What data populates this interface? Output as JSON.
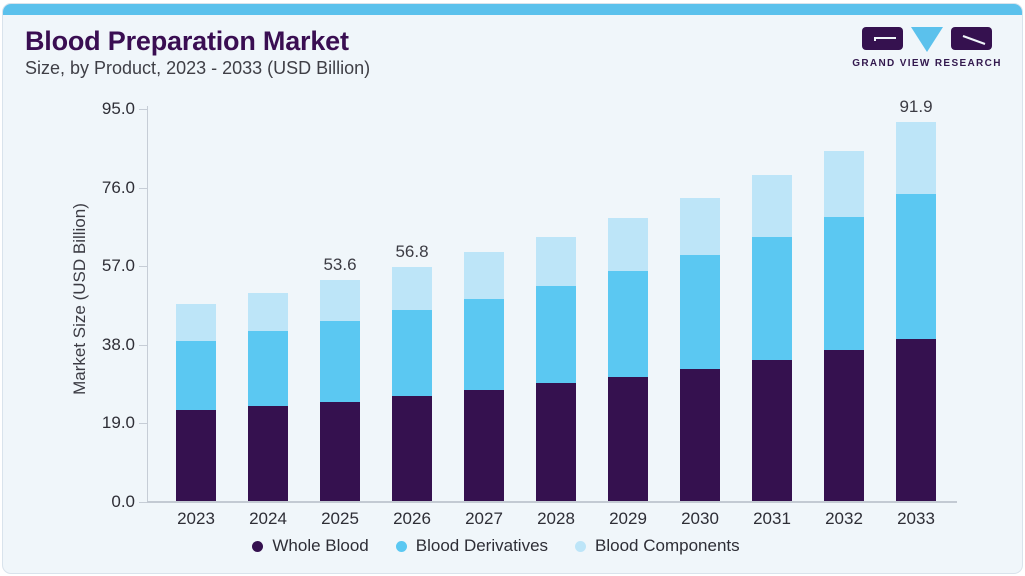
{
  "page": {
    "title": "Blood Preparation Market",
    "subtitle": "Size, by Product, 2023 - 2033 (USD Billion)",
    "brand_name": "GRAND VIEW RESEARCH"
  },
  "colors": {
    "accent_strip": "#5BC1EC",
    "card_background": "#F0F6FA",
    "title_text": "#3A0E52",
    "whole_blood": "#35114F",
    "blood_derivatives": "#5BC8F2",
    "blood_components": "#BDE5F8",
    "axis_line": "#C6CDD6",
    "body_text": "#3C3C44"
  },
  "chart_data": {
    "type": "bar",
    "stacked": true,
    "title": "Blood Preparation Market",
    "xlabel": "",
    "ylabel": "Market Size (USD Billion)",
    "categories": [
      "2023",
      "2024",
      "2025",
      "2026",
      "2027",
      "2028",
      "2029",
      "2030",
      "2031",
      "2032",
      "2033"
    ],
    "series": [
      {
        "name": "Whole Blood",
        "color": "#35114F",
        "values": [
          22.1,
          23.1,
          24.1,
          25.5,
          26.9,
          28.6,
          30.2,
          32.1,
          34.3,
          36.6,
          39.3
        ]
      },
      {
        "name": "Blood Derivatives",
        "color": "#5BC8F2",
        "values": [
          16.9,
          18.2,
          19.6,
          20.9,
          22.2,
          23.7,
          25.7,
          27.6,
          29.7,
          32.3,
          35.2
        ]
      },
      {
        "name": "Blood Components",
        "color": "#BDE5F8",
        "values": [
          8.8,
          9.2,
          9.9,
          10.4,
          11.3,
          11.9,
          12.7,
          13.8,
          15.1,
          16.1,
          17.4
        ]
      }
    ],
    "totals": [
      47.8,
      50.5,
      53.6,
      56.8,
      60.4,
      64.2,
      68.6,
      73.5,
      79.1,
      85.0,
      91.9
    ],
    "total_labels": {
      "2025": "53.6",
      "2026": "56.8",
      "2033": "91.9"
    },
    "yticks": [
      "0.0",
      "19.0",
      "38.0",
      "57.0",
      "76.0",
      "95.0"
    ],
    "ylim": [
      0,
      95
    ],
    "grid": false,
    "legend_position": "bottom"
  }
}
